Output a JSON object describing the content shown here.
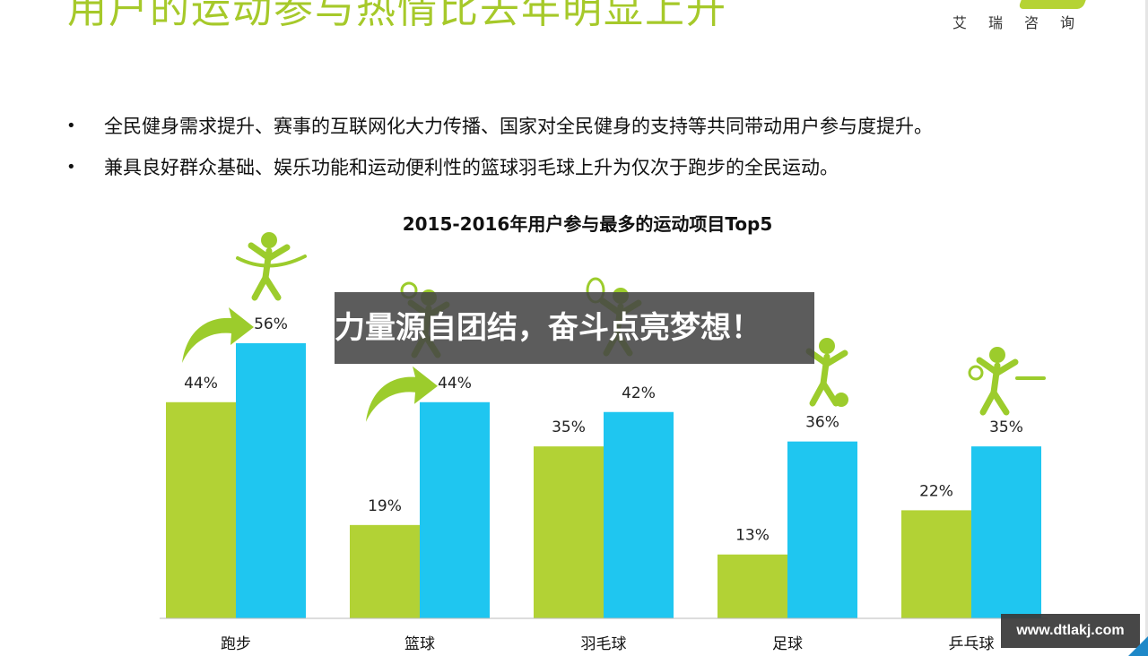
{
  "slide": {
    "title": "用户的运动参与热情比去年明显上升",
    "logo_text": "艾瑞咨询",
    "bullets": [
      "全民健身需求提升、赛事的互联网化大力传播、国家对全民健身的支持等共同带动用户参与度提升。",
      "兼具良好群众基础、娱乐功能和运动便利性的篮球羽毛球上升为仅次于跑步的全民运动。"
    ],
    "bullet_symbol": "•"
  },
  "overlay": {
    "banner_text": "力量源自团结，奋斗点亮梦想！",
    "watermark_text": "www.dtlakj.com"
  },
  "colors": {
    "green": "#b2d235",
    "blue": "#1fc6f0",
    "title_green": "#a6c92a",
    "icon_green": "#9ccc2c"
  },
  "chart_data": {
    "type": "bar",
    "title": "2015-2016年用户参与最多的运动项目Top5",
    "categories": [
      "跑步",
      "篮球",
      "羽毛球",
      "足球",
      "乒乓球"
    ],
    "series": [
      {
        "values": [
          44,
          19,
          35,
          13,
          22
        ]
      },
      {
        "values": [
          56,
          44,
          42,
          36,
          35
        ]
      }
    ],
    "value_labels": [
      [
        "44%",
        "19%",
        "35%",
        "13%",
        "22%"
      ],
      [
        "56%",
        "44%",
        "42%",
        "36%",
        "35%"
      ]
    ],
    "ylim": [
      0,
      56
    ],
    "grid": false,
    "legend": "none",
    "icons": [
      "runner-icon",
      "basketball-player-icon",
      "badminton-player-icon",
      "soccer-player-icon",
      "table-tennis-player-icon"
    ],
    "trend_arrows": [
      "跑步",
      "篮球"
    ]
  }
}
